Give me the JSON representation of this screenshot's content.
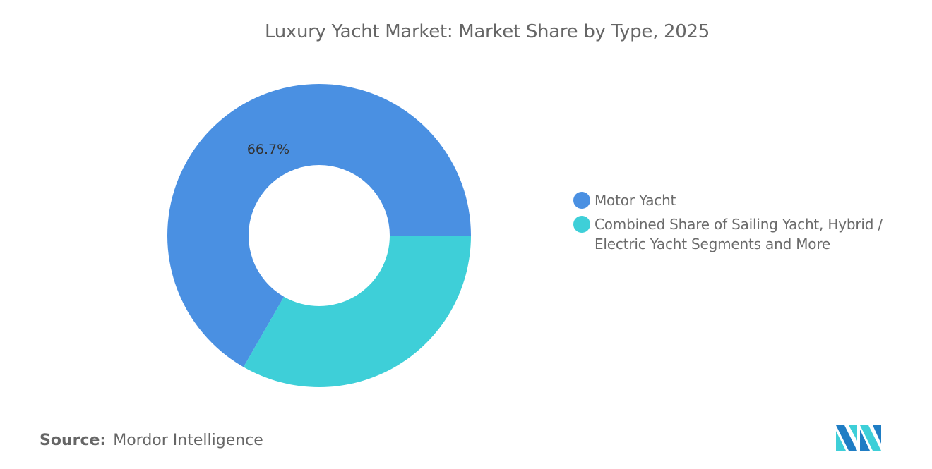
{
  "title": "Luxury Yacht Market: Market Share by Type, 2025",
  "chart_data": {
    "type": "pie",
    "donut": true,
    "title": "Luxury Yacht Market: Market Share by Type, 2025",
    "categories": [
      "Motor Yacht",
      "Combined Share of Sailing Yacht, Hybrid / Electric Yacht Segments and More"
    ],
    "values": [
      66.7,
      33.3
    ],
    "unit": "%",
    "data_labels": [
      "66.7%",
      ""
    ],
    "colors": [
      "#4a90e2",
      "#3ecfd8"
    ],
    "legend_position": "right"
  },
  "legend": [
    {
      "label": "Motor Yacht",
      "color": "#4a90e2"
    },
    {
      "label": "Combined Share of Sailing Yacht, Hybrid / Electric Yacht Segments and More",
      "color": "#3ecfd8"
    }
  ],
  "source": {
    "label": "Source:",
    "value": "Mordor Intelligence"
  },
  "logo": {
    "name": "mordor-intelligence-logo",
    "text": "Mordor Intelligence"
  }
}
